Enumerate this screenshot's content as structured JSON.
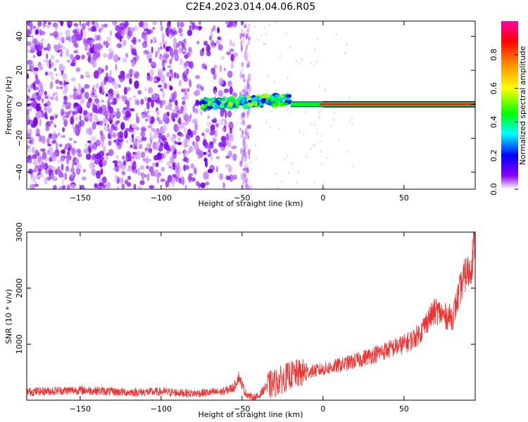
{
  "title": "C2E4.2023.014.04.06.R05",
  "chart_data": [
    {
      "type": "heatmap",
      "xlabel": "Height of straight line (km)",
      "ylabel": "Frequency (Hz)",
      "xlim": [
        -183,
        94
      ],
      "ylim": [
        -50,
        49
      ],
      "xticks": [
        -150,
        -100,
        -50,
        0,
        50
      ],
      "yticks": [
        -40,
        -20,
        0,
        20,
        40
      ],
      "colorbar": {
        "label": "Normalized spectral amplitude",
        "range": [
          0,
          1
        ],
        "ticks": [
          "0.0",
          "0.2",
          "0.4",
          "0.6",
          "0.8"
        ],
        "colormap": [
          "#ffffff",
          "#8c00ff",
          "#0000ff",
          "#00ffff",
          "#00ff00",
          "#ffff00",
          "#ff8800",
          "#ff0000",
          "#ff00aa"
        ]
      },
      "features": {
        "noise_region_x": [
          -183,
          -60
        ],
        "noise_column_x": -48,
        "signal_band": {
          "x_start": -75,
          "x_end": 94,
          "center_hz": 0,
          "strong_from_x": -20
        }
      }
    },
    {
      "type": "line",
      "xlabel": "Height of straight line (km)",
      "ylabel": "SNR (10 * v/v)",
      "xlim": [
        -183,
        94
      ],
      "ylim": [
        0,
        3000
      ],
      "xticks": [
        -150,
        -100,
        -50,
        0,
        50
      ],
      "yticks": [
        1000,
        2000,
        3000
      ],
      "color": "#ee3333",
      "series": [
        {
          "x": [
            -183,
            -150,
            -120,
            -100,
            -80,
            -62,
            -55,
            -52,
            -48,
            -44,
            -40,
            -35,
            -30,
            -20,
            -10,
            0,
            10,
            20,
            30,
            40,
            50,
            55,
            60,
            65,
            70,
            75,
            80,
            85,
            88,
            91,
            94
          ],
          "values": [
            150,
            180,
            140,
            150,
            120,
            150,
            230,
            420,
            130,
            50,
            60,
            250,
            300,
            450,
            500,
            550,
            620,
            700,
            800,
            900,
            1000,
            1080,
            1200,
            1450,
            1600,
            1500,
            1480,
            2000,
            2250,
            2300,
            2950
          ]
        }
      ]
    }
  ]
}
